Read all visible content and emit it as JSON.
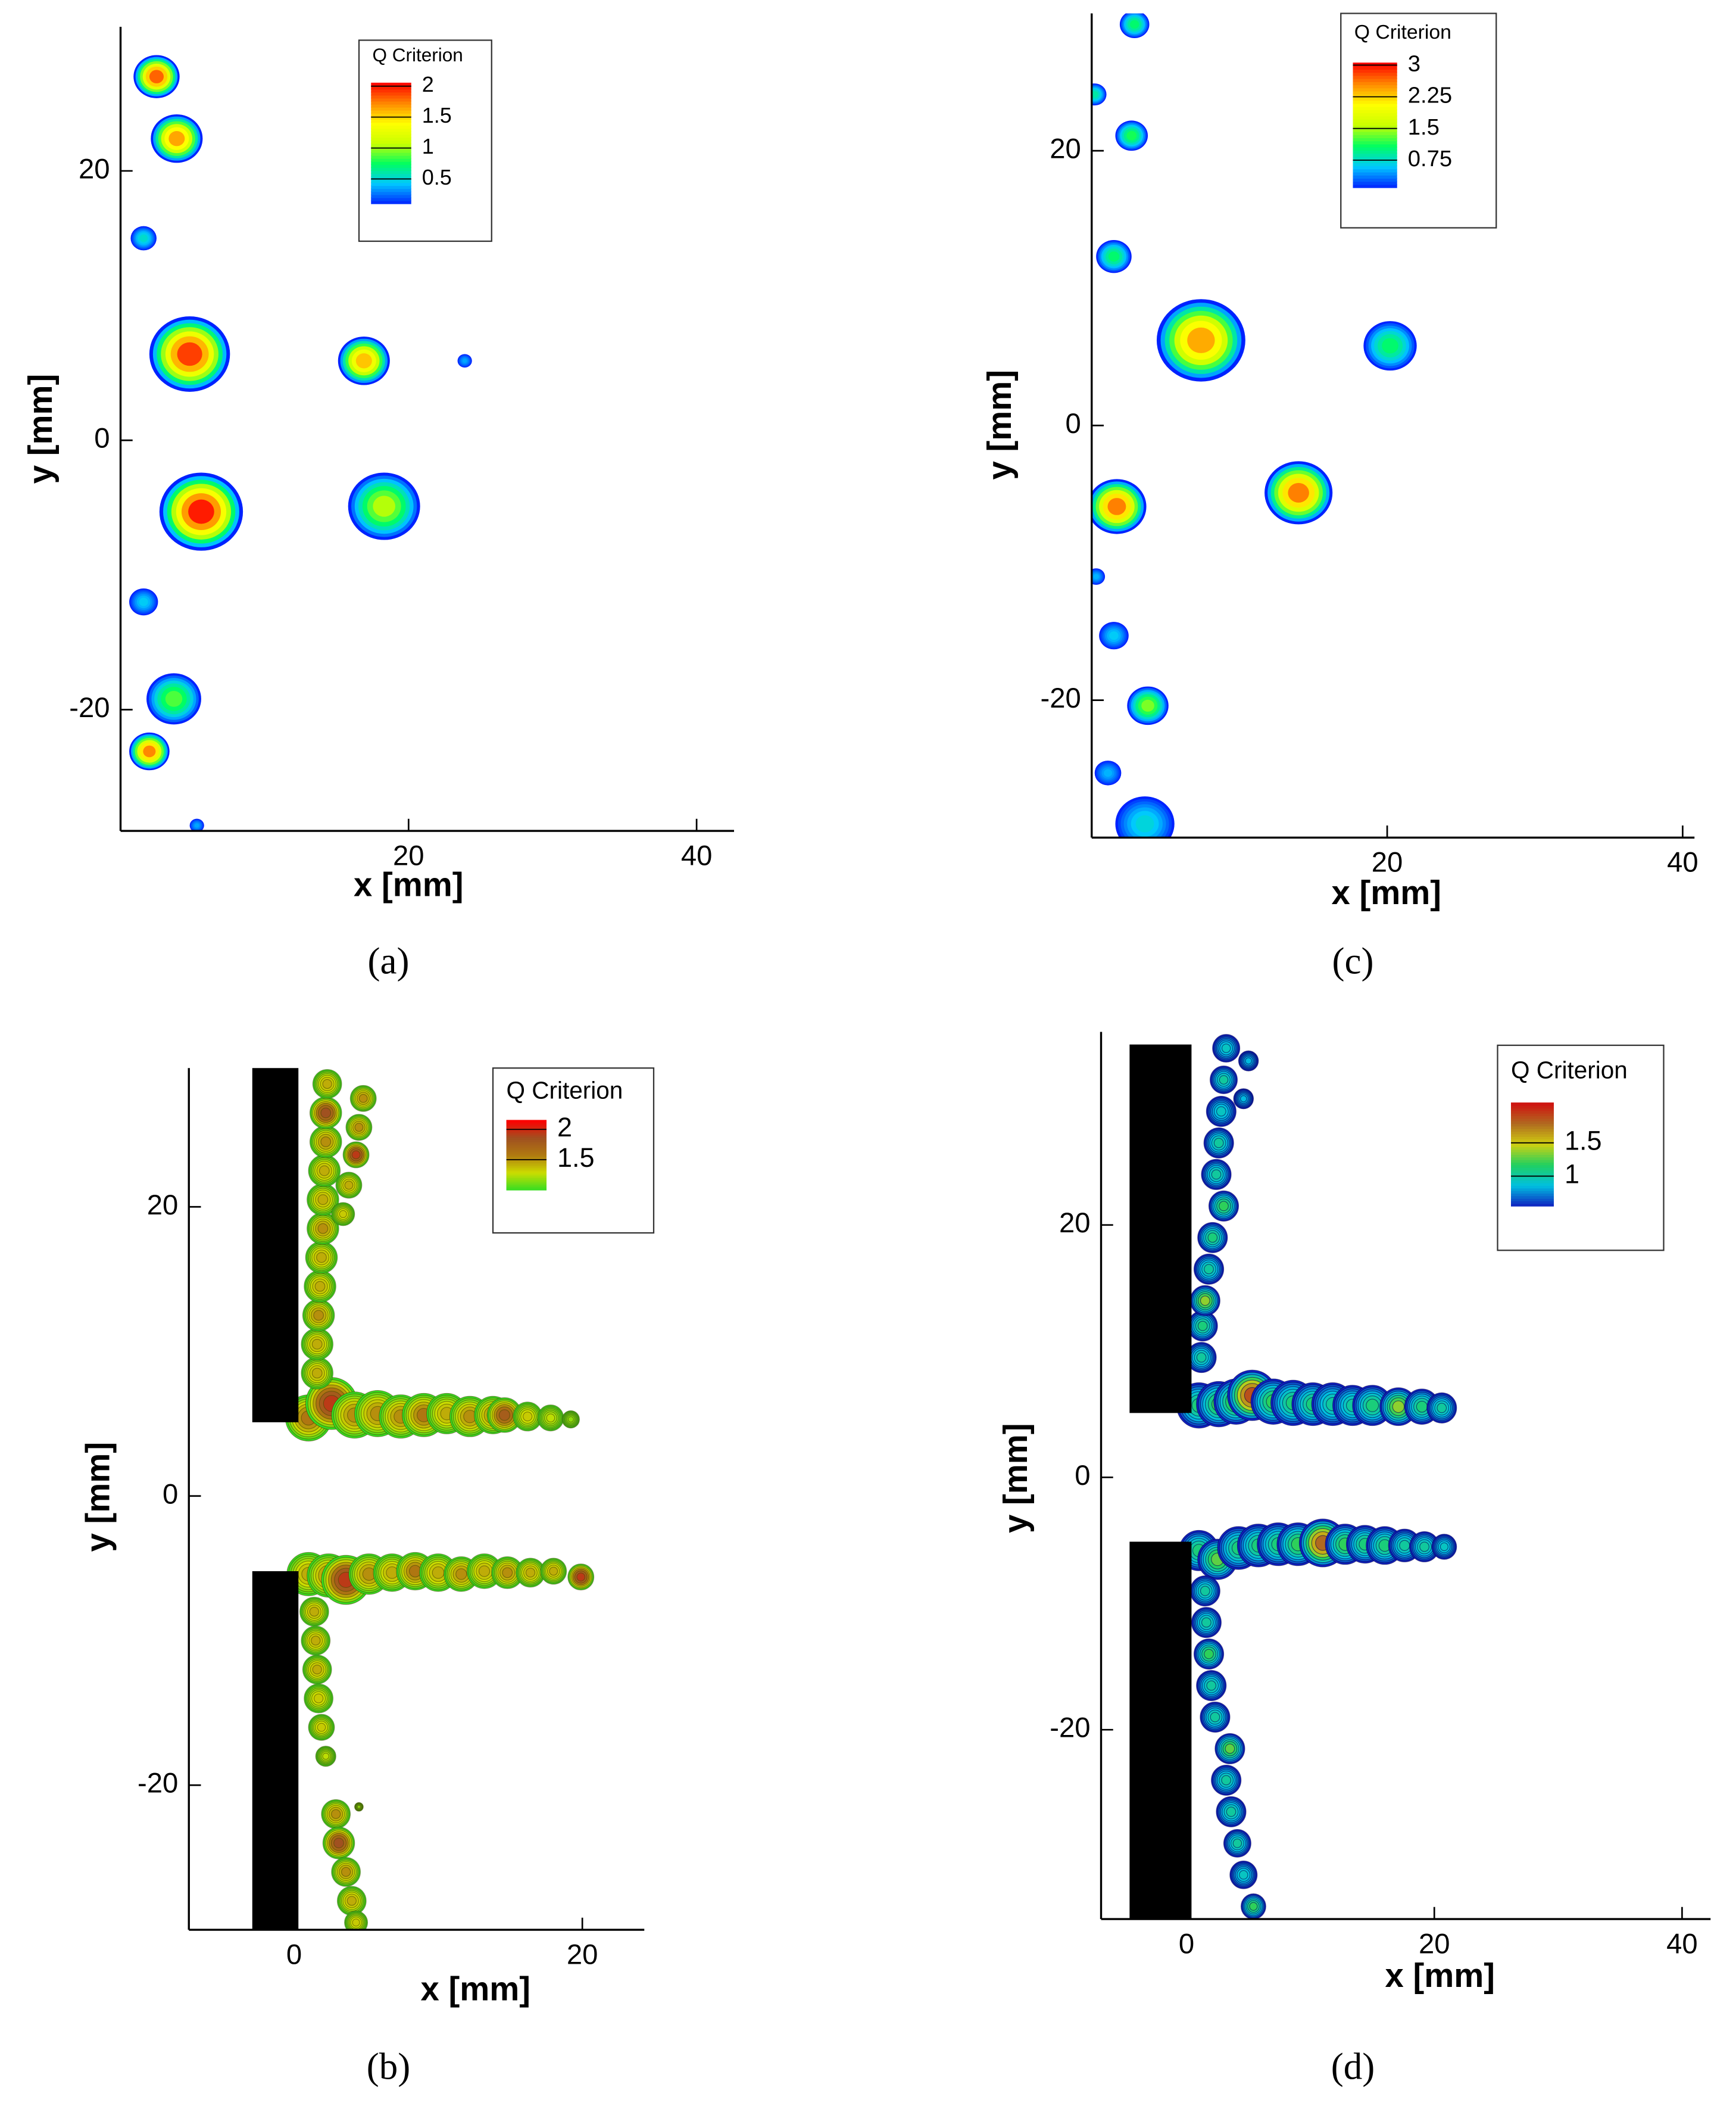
{
  "chart_data": [
    {
      "type": "contour",
      "panel_label": "(a)",
      "xlabel": "x [mm]",
      "ylabel": "y [mm]",
      "xlim": [
        0,
        42.6
      ],
      "ylim": [
        -29,
        30.7
      ],
      "xticks": [
        20,
        40
      ],
      "yticks": [
        20,
        0,
        -20
      ],
      "legend": {
        "title": "Q Criterion",
        "ticks": [
          2,
          1.5,
          1,
          0.5
        ],
        "clim": [
          0.1,
          2.05
        ],
        "colormap": [
          "#0022ff",
          "#00c8ff",
          "#00ff60",
          "#c8ff00",
          "#ffff00",
          "#ff8800",
          "#ff0000"
        ]
      },
      "contour_lines": false,
      "plates": [],
      "vortices": {
        "x": [
          2.5,
          3.9,
          1.6,
          4.8,
          16.9,
          23.9,
          5.6,
          18.3,
          1.6,
          3.7,
          2.0,
          5.3
        ],
        "y": [
          27,
          22.4,
          15,
          6.4,
          5.9,
          5.9,
          -5.3,
          -4.9,
          -12,
          -19.2,
          -23.1,
          -28.6
        ],
        "peak": [
          2.1,
          1.9,
          0.6,
          2.2,
          1.8,
          0.4,
          2.3,
          1.2,
          0.5,
          1.0,
          2.0,
          0.4
        ],
        "radius": [
          1.6,
          1.8,
          0.9,
          2.8,
          1.8,
          0.5,
          2.9,
          2.5,
          1.0,
          1.9,
          1.4,
          0.5
        ]
      }
    },
    {
      "type": "contour",
      "panel_label": "(b)",
      "xlabel": "x [mm]",
      "ylabel": "y [mm]",
      "xlim": [
        -7.3,
        24.3
      ],
      "ylim": [
        -30,
        29.6
      ],
      "xticks": [
        0,
        20
      ],
      "yticks": [
        20,
        0,
        -20
      ],
      "legend": {
        "title": "Q Criterion",
        "ticks": [
          2,
          1.5
        ],
        "clim": [
          1.0,
          2.15
        ],
        "colormap": [
          "#33dd22",
          "#ccdd00",
          "#b07a10",
          "#a05020",
          "#ff0000"
        ]
      },
      "contour_lines": true,
      "contour_line_color": "#4a4a00",
      "plates": [
        {
          "x": [
            -2.9,
            0.3
          ],
          "y": [
            5.1,
            29.6
          ]
        },
        {
          "x": [
            -2.9,
            0.3
          ],
          "y": [
            -30,
            -5.2
          ]
        }
      ],
      "vortices": {
        "x": [
          1.0,
          2.6,
          4.2,
          5.8,
          7.4,
          9.0,
          10.6,
          12.2,
          13.8,
          14.6,
          16.2,
          17.8,
          19.2,
          1.6,
          1.6,
          1.7,
          1.8,
          1.9,
          2.0,
          2.0,
          2.1,
          2.2,
          2.2,
          2.3,
          4.8,
          4.5,
          4.3,
          3.8,
          3.4,
          1.0,
          2.4,
          3.6,
          5.2,
          6.8,
          8.4,
          10.0,
          11.6,
          13.2,
          14.8,
          16.4,
          18.0,
          19.9,
          1.4,
          1.5,
          1.6,
          1.7,
          1.9,
          2.2,
          2.9,
          3.1,
          3.6,
          4.0,
          4.3,
          4.5
        ],
        "y": [
          5.4,
          6.4,
          5.6,
          5.7,
          5.5,
          5.6,
          5.7,
          5.5,
          5.6,
          5.6,
          5.5,
          5.4,
          5.3,
          8.5,
          10.5,
          12.5,
          14.5,
          16.5,
          18.5,
          20.5,
          22.5,
          24.5,
          26.5,
          28.5,
          27.5,
          25.5,
          23.6,
          21.5,
          19.5,
          -5.4,
          -5.5,
          -5.8,
          -5.4,
          -5.3,
          -5.2,
          -5.3,
          -5.4,
          -5.2,
          -5.3,
          -5.3,
          -5.2,
          -5.6,
          -8,
          -10,
          -12,
          -14,
          -16,
          -18,
          -22,
          -24,
          -26,
          -28,
          -29.5,
          -21.5
        ],
        "peak": [
          1.7,
          2.1,
          1.6,
          1.6,
          1.6,
          1.7,
          1.5,
          1.6,
          1.6,
          1.9,
          1.4,
          1.3,
          1.2,
          1.5,
          1.5,
          1.6,
          1.5,
          1.5,
          1.6,
          1.5,
          1.5,
          1.6,
          2.0,
          1.5,
          1.6,
          1.6,
          2.1,
          1.5,
          1.4,
          1.5,
          1.6,
          2.1,
          1.6,
          1.5,
          1.7,
          1.5,
          1.6,
          1.5,
          1.6,
          1.5,
          1.5,
          2.1,
          1.5,
          1.5,
          1.5,
          1.4,
          1.4,
          1.3,
          1.6,
          2.0,
          1.6,
          1.5,
          1.4,
          1.2
        ],
        "radius": [
          1.6,
          1.8,
          1.6,
          1.6,
          1.5,
          1.5,
          1.4,
          1.4,
          1.3,
          1.2,
          1.0,
          0.9,
          0.6,
          1.1,
          1.1,
          1.1,
          1.1,
          1.1,
          1.1,
          1.1,
          1.1,
          1.1,
          1.1,
          1.0,
          0.9,
          0.9,
          0.9,
          0.9,
          0.8,
          1.5,
          1.5,
          1.7,
          1.4,
          1.3,
          1.3,
          1.3,
          1.2,
          1.2,
          1.1,
          1.0,
          0.9,
          0.9,
          1.0,
          1.0,
          1.0,
          1.0,
          0.9,
          0.7,
          1.0,
          1.1,
          1.0,
          1.0,
          0.8,
          0.3
        ]
      }
    },
    {
      "type": "contour",
      "panel_label": "(c)",
      "xlabel": "x [mm]",
      "ylabel": "y [mm]",
      "xlim": [
        0,
        40.8
      ],
      "ylim": [
        -30,
        30
      ],
      "xticks": [
        20,
        40
      ],
      "yticks": [
        20,
        0,
        -20
      ],
      "legend": {
        "title": "Q Criterion",
        "ticks": [
          3,
          2.25,
          1.5,
          0.75
        ],
        "clim": [
          0.1,
          3.05
        ],
        "colormap": [
          "#0022ff",
          "#00c8ff",
          "#00ff60",
          "#c8ff00",
          "#ffff00",
          "#ff8800",
          "#ff0000"
        ]
      },
      "contour_lines": false,
      "plates": [],
      "vortices": {
        "x": [
          2.9,
          0.2,
          2.7,
          1.5,
          7.4,
          20.2,
          1.7,
          14.0,
          0.3,
          1.5,
          3.8,
          1.1,
          3.6
        ],
        "y": [
          29.2,
          24.1,
          21.1,
          12.3,
          6.2,
          5.8,
          -5.9,
          -4.9,
          -11,
          -15.3,
          -20.4,
          -25.3,
          -29
        ],
        "peak": [
          1.2,
          1.0,
          1.3,
          1.2,
          2.8,
          1.2,
          3.0,
          3.0,
          0.6,
          0.7,
          1.6,
          0.6,
          0.8
        ],
        "radius": [
          1.0,
          0.8,
          1.1,
          1.2,
          3.0,
          1.8,
          2.0,
          2.3,
          0.6,
          1.0,
          1.4,
          0.9,
          2.0
        ]
      }
    },
    {
      "type": "contour",
      "panel_label": "(d)",
      "xlabel": "x [mm]",
      "ylabel": "y [mm]",
      "xlim": [
        -6.9,
        42.3
      ],
      "ylim": [
        -35,
        35.3
      ],
      "xticks": [
        0,
        20,
        40
      ],
      "yticks": [
        20,
        0,
        -20
      ],
      "legend": {
        "title": "Q Criterion",
        "ticks": [
          1.5,
          1
        ],
        "clim": [
          0.55,
          2.1
        ],
        "colormap": [
          "#1020c0",
          "#00c0e0",
          "#20d060",
          "#d0d010",
          "#b06a20",
          "#d01010"
        ]
      },
      "contour_lines": true,
      "contour_line_color": "#000050",
      "plates": [
        {
          "x": [
            -4.6,
            0.4
          ],
          "y": [
            5.1,
            34.3
          ]
        },
        {
          "x": [
            -4.6,
            0.4
          ],
          "y": [
            -35,
            -5.1
          ]
        }
      ],
      "vortices": {
        "x": [
          1.0,
          2.6,
          4.0,
          5.3,
          7.0,
          8.6,
          10.2,
          11.8,
          13.4,
          15.0,
          17.1,
          19.0,
          20.6,
          1.2,
          1.3,
          1.5,
          1.8,
          2.1,
          3.0,
          2.4,
          2.6,
          2.8,
          3.0,
          3.2,
          5.0,
          4.6,
          1.0,
          2.5,
          4.2,
          5.8,
          7.4,
          9.0,
          11.0,
          12.8,
          14.4,
          16.0,
          17.6,
          19.2,
          20.8,
          1.5,
          1.6,
          1.8,
          2.0,
          2.3,
          3.5,
          3.2,
          3.6,
          4.1,
          4.6,
          5.4
        ],
        "y": [
          5.7,
          5.8,
          6.0,
          6.5,
          6.0,
          5.9,
          5.8,
          5.8,
          5.7,
          5.7,
          5.6,
          5.6,
          5.5,
          9.5,
          12,
          14,
          16.5,
          19,
          21.5,
          24,
          26.5,
          29,
          31.5,
          34,
          33,
          30,
          -5.8,
          -6.5,
          -5.6,
          -5.4,
          -5.3,
          -5.3,
          -5.2,
          -5.3,
          -5.3,
          -5.4,
          -5.4,
          -5.5,
          -5.5,
          -9,
          -11.5,
          -14,
          -16.5,
          -19,
          -21.5,
          -24,
          -26.5,
          -29,
          -31.5,
          -34
        ],
        "peak": [
          1.2,
          1.3,
          1.4,
          2.1,
          1.3,
          1.2,
          1.2,
          1.1,
          1.1,
          1.2,
          1.5,
          1.2,
          1.1,
          1.1,
          1.2,
          1.5,
          1.1,
          1.2,
          1.3,
          1.1,
          1.1,
          1.0,
          1.1,
          1.0,
          0.9,
          0.9,
          1.2,
          1.4,
          1.2,
          1.2,
          1.2,
          1.3,
          2.0,
          1.3,
          1.2,
          1.2,
          1.1,
          1.1,
          1.0,
          1.1,
          1.1,
          1.3,
          1.1,
          1.1,
          1.4,
          1.1,
          1.1,
          1.1,
          1.0,
          1.3
        ],
        "radius": [
          1.8,
          1.8,
          1.8,
          2.0,
          1.8,
          1.8,
          1.7,
          1.7,
          1.6,
          1.6,
          1.5,
          1.4,
          1.2,
          1.2,
          1.2,
          1.2,
          1.2,
          1.2,
          1.2,
          1.2,
          1.2,
          1.2,
          1.1,
          1.1,
          0.8,
          0.8,
          1.6,
          1.6,
          1.7,
          1.7,
          1.7,
          1.7,
          1.9,
          1.6,
          1.5,
          1.5,
          1.3,
          1.2,
          1.0,
          1.2,
          1.2,
          1.2,
          1.2,
          1.2,
          1.2,
          1.2,
          1.2,
          1.1,
          1.1,
          1.0
        ]
      }
    }
  ]
}
